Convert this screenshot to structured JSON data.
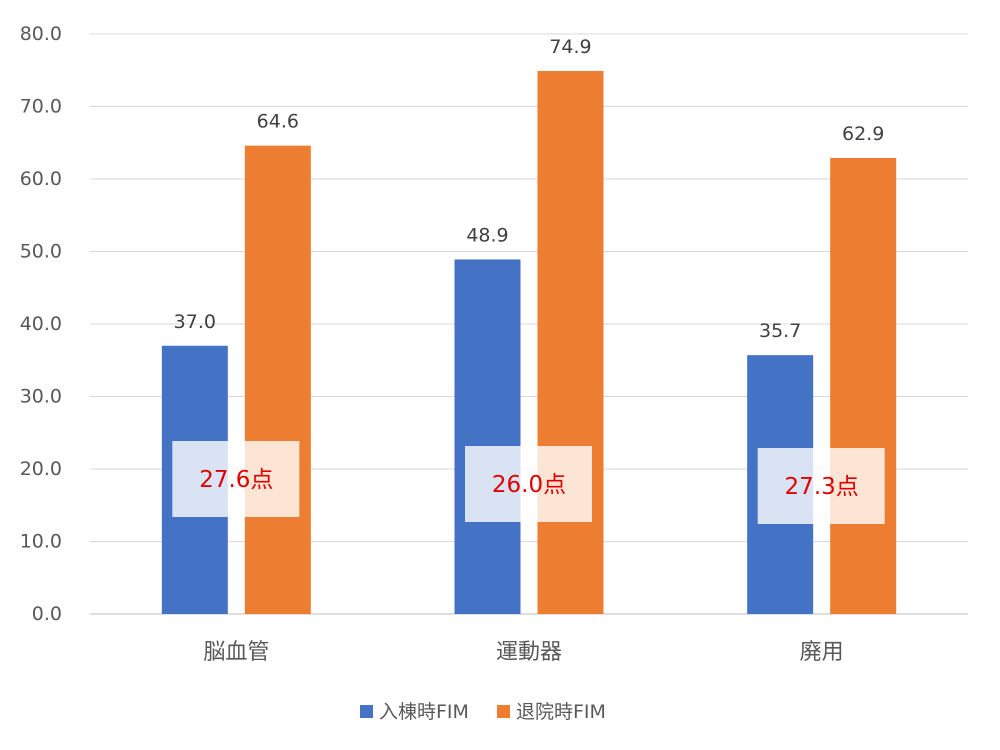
{
  "chart_data": {
    "type": "bar",
    "categories": [
      "脳血管",
      "運動器",
      "廃用"
    ],
    "series": [
      {
        "name": "入棟時FIM",
        "values": [
          37.0,
          48.9,
          35.7
        ],
        "color": "#4472C4"
      },
      {
        "name": "退院時FIM",
        "values": [
          64.6,
          74.9,
          62.9
        ],
        "color": "#ED7D31"
      }
    ],
    "data_labels": [
      [
        "37.0",
        "48.9",
        "35.7"
      ],
      [
        "64.6",
        "74.9",
        "62.9"
      ]
    ],
    "annotations": [
      "27.6点",
      "26.0点",
      "27.3点"
    ],
    "annotation_color": "#E00000",
    "y_ticks": [
      "0.0",
      "10.0",
      "20.0",
      "30.0",
      "40.0",
      "50.0",
      "60.0",
      "70.0",
      "80.0"
    ],
    "ylim": [
      0,
      80
    ],
    "grid": true,
    "legend_position": "bottom"
  }
}
